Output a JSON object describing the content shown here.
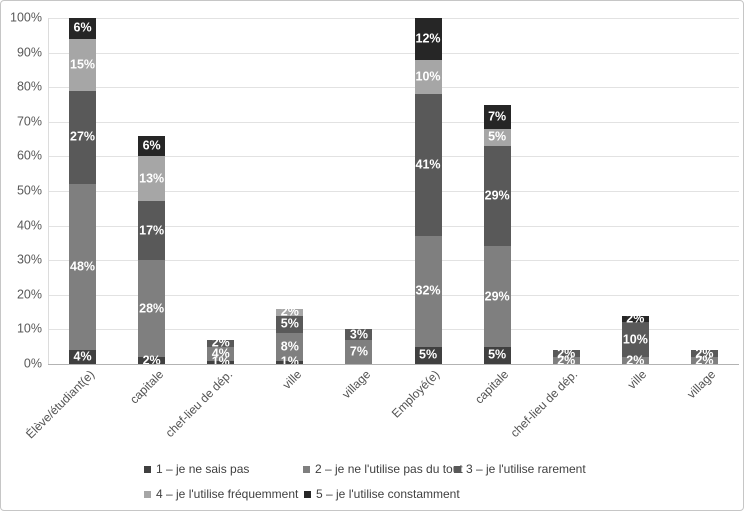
{
  "figure": {
    "background": "#ffffff",
    "border_color": "#c6c6c6"
  },
  "chart_data": {
    "type": "bar",
    "stacked": true,
    "title": "",
    "xlabel": "",
    "ylabel": "",
    "categories": [
      "Élève/étudiant(e)",
      "capitale",
      "chef-lieu de dép.",
      "ville",
      "village",
      "Employé(e)",
      "capitale",
      "chef-lieu de dép.",
      "ville",
      "village"
    ],
    "series": [
      {
        "name": "1 – je ne sais pas",
        "color": "#404040",
        "values": [
          4,
          2,
          1,
          1,
          0,
          5,
          5,
          0,
          0,
          0
        ]
      },
      {
        "name": "2 – je ne l'utilise pas du tout",
        "color": "#7f7f7f",
        "values": [
          48,
          28,
          4,
          8,
          7,
          32,
          29,
          2,
          2,
          2
        ]
      },
      {
        "name": "3 – je l'utilise rarement",
        "color": "#595959",
        "values": [
          27,
          17,
          2,
          5,
          3,
          41,
          29,
          2,
          10,
          2
        ]
      },
      {
        "name": "4 – je l'utilise fréquemment",
        "color": "#a6a6a6",
        "values": [
          15,
          13,
          0,
          2,
          0,
          10,
          5,
          0,
          0,
          0
        ]
      },
      {
        "name": "5 – je l'utilise constamment",
        "color": "#262626",
        "values": [
          6,
          6,
          0,
          0,
          0,
          12,
          7,
          0,
          2,
          0
        ]
      }
    ],
    "data_label_suffix": "%",
    "y_axis": {
      "min": 0,
      "max": 100,
      "step": 10,
      "tick_labels": [
        "0%",
        "10%",
        "20%",
        "30%",
        "40%",
        "50%",
        "60%",
        "70%",
        "80%",
        "90%",
        "100%"
      ]
    },
    "grid": true,
    "legend_position": "bottom",
    "legend_rows": [
      [
        0,
        1,
        2
      ],
      [
        3,
        4
      ]
    ]
  }
}
